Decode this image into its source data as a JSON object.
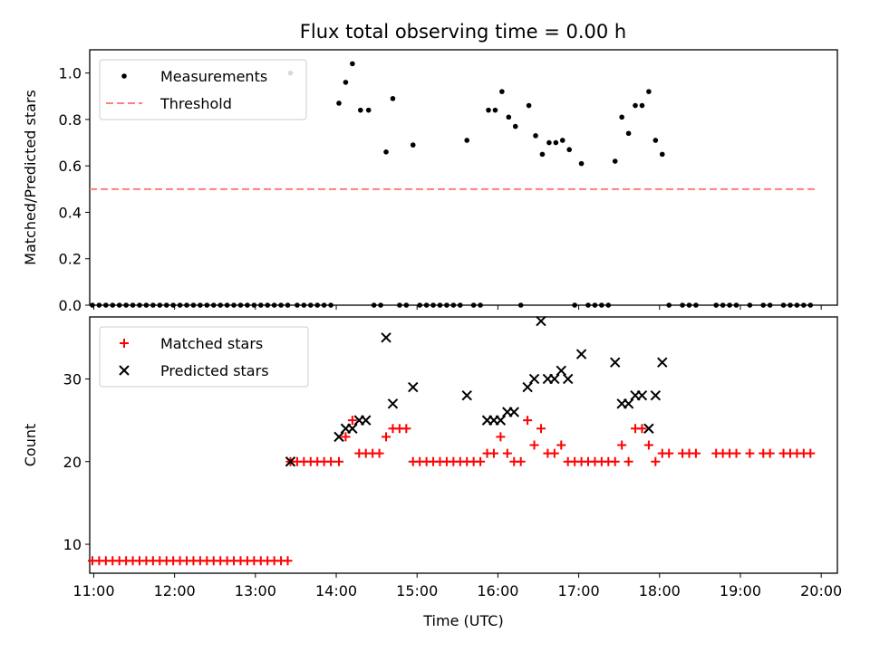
{
  "figure": {
    "title": "Flux total observing time = 0.00 h"
  },
  "chart_data": [
    {
      "type": "scatter",
      "title": "Flux total observing time = 0.00 h",
      "xlabel": "",
      "ylabel": "Matched/Predicted stars",
      "xlim": [
        "10:57",
        "20:12"
      ],
      "ylim": [
        0,
        1.1
      ],
      "x_ticks": [
        "11:00",
        "12:00",
        "13:00",
        "14:00",
        "15:00",
        "16:00",
        "17:00",
        "18:00",
        "19:00",
        "20:00"
      ],
      "y_ticks": [
        "0.0",
        "0.2",
        "0.4",
        "0.6",
        "0.8",
        "1.0"
      ],
      "legend_position": "top-left",
      "series": [
        {
          "name": "Measurements",
          "color": "#000000",
          "marker": "dot",
          "points": [
            [
              "10:59",
              0
            ],
            [
              "11:04",
              0
            ],
            [
              "11:09",
              0
            ],
            [
              "11:14",
              0
            ],
            [
              "11:19",
              0
            ],
            [
              "11:24",
              0
            ],
            [
              "11:29",
              0
            ],
            [
              "11:34",
              0
            ],
            [
              "11:39",
              0
            ],
            [
              "11:44",
              0
            ],
            [
              "11:49",
              0
            ],
            [
              "11:54",
              0
            ],
            [
              "11:59",
              0
            ],
            [
              "12:04",
              0
            ],
            [
              "12:09",
              0
            ],
            [
              "12:14",
              0
            ],
            [
              "12:19",
              0
            ],
            [
              "12:24",
              0
            ],
            [
              "12:29",
              0
            ],
            [
              "12:34",
              0
            ],
            [
              "12:39",
              0
            ],
            [
              "12:44",
              0
            ],
            [
              "12:49",
              0
            ],
            [
              "12:54",
              0
            ],
            [
              "12:59",
              0
            ],
            [
              "13:04",
              0
            ],
            [
              "13:09",
              0
            ],
            [
              "13:14",
              0
            ],
            [
              "13:19",
              0
            ],
            [
              "13:24",
              0
            ],
            [
              "13:26",
              1.0
            ],
            [
              "13:31",
              0
            ],
            [
              "13:36",
              0
            ],
            [
              "13:41",
              0
            ],
            [
              "13:46",
              0
            ],
            [
              "13:51",
              0
            ],
            [
              "13:56",
              0
            ],
            [
              "14:02",
              0.87
            ],
            [
              "14:07",
              0.96
            ],
            [
              "14:12",
              1.04
            ],
            [
              "14:18",
              0.84
            ],
            [
              "14:24",
              0.84
            ],
            [
              "14:28",
              0
            ],
            [
              "14:33",
              0
            ],
            [
              "14:37",
              0.66
            ],
            [
              "14:42",
              0.89
            ],
            [
              "14:47",
              0
            ],
            [
              "14:52",
              0
            ],
            [
              "14:57",
              0.69
            ],
            [
              "15:02",
              0
            ],
            [
              "15:07",
              0
            ],
            [
              "15:12",
              0
            ],
            [
              "15:17",
              0
            ],
            [
              "15:22",
              0
            ],
            [
              "15:27",
              0
            ],
            [
              "15:32",
              0
            ],
            [
              "15:37",
              0.71
            ],
            [
              "15:42",
              0
            ],
            [
              "15:47",
              0
            ],
            [
              "15:53",
              0.84
            ],
            [
              "15:58",
              0.84
            ],
            [
              "16:03",
              0.92
            ],
            [
              "16:08",
              0.81
            ],
            [
              "16:13",
              0.77
            ],
            [
              "16:17",
              0
            ],
            [
              "16:23",
              0.86
            ],
            [
              "16:28",
              0.73
            ],
            [
              "16:33",
              0.65
            ],
            [
              "16:38",
              0.7
            ],
            [
              "16:43",
              0.7
            ],
            [
              "16:48",
              0.71
            ],
            [
              "16:53",
              0.67
            ],
            [
              "16:57",
              0
            ],
            [
              "17:02",
              0.61
            ],
            [
              "17:07",
              0
            ],
            [
              "17:12",
              0
            ],
            [
              "17:17",
              0
            ],
            [
              "17:22",
              0
            ],
            [
              "17:27",
              0.62
            ],
            [
              "17:32",
              0.81
            ],
            [
              "17:37",
              0.74
            ],
            [
              "17:42",
              0.86
            ],
            [
              "17:47",
              0.86
            ],
            [
              "17:52",
              0.92
            ],
            [
              "17:57",
              0.71
            ],
            [
              "18:02",
              0.65
            ],
            [
              "18:07",
              0
            ],
            [
              "18:17",
              0
            ],
            [
              "18:22",
              0
            ],
            [
              "18:27",
              0
            ],
            [
              "18:42",
              0
            ],
            [
              "18:47",
              0
            ],
            [
              "18:52",
              0
            ],
            [
              "18:57",
              0
            ],
            [
              "19:07",
              0
            ],
            [
              "19:17",
              0
            ],
            [
              "19:22",
              0
            ],
            [
              "19:32",
              0
            ],
            [
              "19:37",
              0
            ],
            [
              "19:42",
              0
            ],
            [
              "19:47",
              0
            ],
            [
              "19:52",
              0
            ]
          ]
        },
        {
          "name": "Threshold",
          "color": "#ff7f7f",
          "line_style": "dashed",
          "points": [
            [
              "10:57",
              0.5
            ],
            [
              "19:57",
              0.5
            ]
          ]
        }
      ]
    },
    {
      "type": "scatter",
      "title": "",
      "xlabel": "Time (UTC)",
      "ylabel": "Count",
      "xlim": [
        "10:57",
        "20:12"
      ],
      "ylim": [
        6.5,
        37.5
      ],
      "x_ticks": [
        "11:00",
        "12:00",
        "13:00",
        "14:00",
        "15:00",
        "16:00",
        "17:00",
        "18:00",
        "19:00",
        "20:00"
      ],
      "y_ticks": [
        "10",
        "20",
        "30"
      ],
      "legend_position": "top-left",
      "series": [
        {
          "name": "Matched stars",
          "color": "#ff0000",
          "marker": "plus",
          "points": [
            [
              "10:59",
              8
            ],
            [
              "11:04",
              8
            ],
            [
              "11:09",
              8
            ],
            [
              "11:14",
              8
            ],
            [
              "11:19",
              8
            ],
            [
              "11:24",
              8
            ],
            [
              "11:29",
              8
            ],
            [
              "11:34",
              8
            ],
            [
              "11:39",
              8
            ],
            [
              "11:44",
              8
            ],
            [
              "11:49",
              8
            ],
            [
              "11:54",
              8
            ],
            [
              "11:59",
              8
            ],
            [
              "12:04",
              8
            ],
            [
              "12:09",
              8
            ],
            [
              "12:14",
              8
            ],
            [
              "12:19",
              8
            ],
            [
              "12:24",
              8
            ],
            [
              "12:29",
              8
            ],
            [
              "12:34",
              8
            ],
            [
              "12:39",
              8
            ],
            [
              "12:44",
              8
            ],
            [
              "12:49",
              8
            ],
            [
              "12:54",
              8
            ],
            [
              "12:59",
              8
            ],
            [
              "13:04",
              8
            ],
            [
              "13:09",
              8
            ],
            [
              "13:14",
              8
            ],
            [
              "13:19",
              8
            ],
            [
              "13:24",
              8
            ],
            [
              "13:26",
              20
            ],
            [
              "13:31",
              20
            ],
            [
              "13:36",
              20
            ],
            [
              "13:41",
              20
            ],
            [
              "13:46",
              20
            ],
            [
              "13:51",
              20
            ],
            [
              "13:56",
              20
            ],
            [
              "14:02",
              20
            ],
            [
              "14:07",
              23
            ],
            [
              "14:12",
              25
            ],
            [
              "14:17",
              21
            ],
            [
              "14:22",
              21
            ],
            [
              "14:27",
              21
            ],
            [
              "14:32",
              21
            ],
            [
              "14:37",
              23
            ],
            [
              "14:42",
              24
            ],
            [
              "14:47",
              24
            ],
            [
              "14:52",
              24
            ],
            [
              "14:57",
              20
            ],
            [
              "15:02",
              20
            ],
            [
              "15:07",
              20
            ],
            [
              "15:12",
              20
            ],
            [
              "15:17",
              20
            ],
            [
              "15:22",
              20
            ],
            [
              "15:27",
              20
            ],
            [
              "15:32",
              20
            ],
            [
              "15:37",
              20
            ],
            [
              "15:42",
              20
            ],
            [
              "15:47",
              20
            ],
            [
              "15:52",
              21
            ],
            [
              "15:57",
              21
            ],
            [
              "16:02",
              23
            ],
            [
              "16:07",
              21
            ],
            [
              "16:12",
              20
            ],
            [
              "16:17",
              20
            ],
            [
              "16:22",
              25
            ],
            [
              "16:27",
              22
            ],
            [
              "16:32",
              24
            ],
            [
              "16:37",
              21
            ],
            [
              "16:42",
              21
            ],
            [
              "16:47",
              22
            ],
            [
              "16:52",
              20
            ],
            [
              "16:57",
              20
            ],
            [
              "17:02",
              20
            ],
            [
              "17:07",
              20
            ],
            [
              "17:12",
              20
            ],
            [
              "17:17",
              20
            ],
            [
              "17:22",
              20
            ],
            [
              "17:27",
              20
            ],
            [
              "17:32",
              22
            ],
            [
              "17:37",
              20
            ],
            [
              "17:42",
              24
            ],
            [
              "17:47",
              24
            ],
            [
              "17:52",
              22
            ],
            [
              "17:57",
              20
            ],
            [
              "18:02",
              21
            ],
            [
              "18:07",
              21
            ],
            [
              "18:17",
              21
            ],
            [
              "18:22",
              21
            ],
            [
              "18:27",
              21
            ],
            [
              "18:42",
              21
            ],
            [
              "18:47",
              21
            ],
            [
              "18:52",
              21
            ],
            [
              "18:57",
              21
            ],
            [
              "19:07",
              21
            ],
            [
              "19:17",
              21
            ],
            [
              "19:22",
              21
            ],
            [
              "19:32",
              21
            ],
            [
              "19:37",
              21
            ],
            [
              "19:42",
              21
            ],
            [
              "19:47",
              21
            ],
            [
              "19:52",
              21
            ]
          ]
        },
        {
          "name": "Predicted stars",
          "color": "#000000",
          "marker": "x",
          "points": [
            [
              "13:26",
              20
            ],
            [
              "14:02",
              23
            ],
            [
              "14:07",
              24
            ],
            [
              "14:12",
              24
            ],
            [
              "14:17",
              25
            ],
            [
              "14:22",
              25
            ],
            [
              "14:37",
              35
            ],
            [
              "14:42",
              27
            ],
            [
              "14:57",
              29
            ],
            [
              "15:37",
              28
            ],
            [
              "15:52",
              25
            ],
            [
              "15:57",
              25
            ],
            [
              "16:02",
              25
            ],
            [
              "16:07",
              26
            ],
            [
              "16:12",
              26
            ],
            [
              "16:22",
              29
            ],
            [
              "16:27",
              30
            ],
            [
              "16:32",
              37
            ],
            [
              "16:37",
              30
            ],
            [
              "16:42",
              30
            ],
            [
              "16:47",
              31
            ],
            [
              "16:52",
              30
            ],
            [
              "17:02",
              33
            ],
            [
              "17:27",
              32
            ],
            [
              "17:32",
              27
            ],
            [
              "17:37",
              27
            ],
            [
              "17:42",
              28
            ],
            [
              "17:47",
              28
            ],
            [
              "17:52",
              24
            ],
            [
              "17:57",
              28
            ],
            [
              "18:02",
              32
            ]
          ]
        }
      ]
    }
  ]
}
